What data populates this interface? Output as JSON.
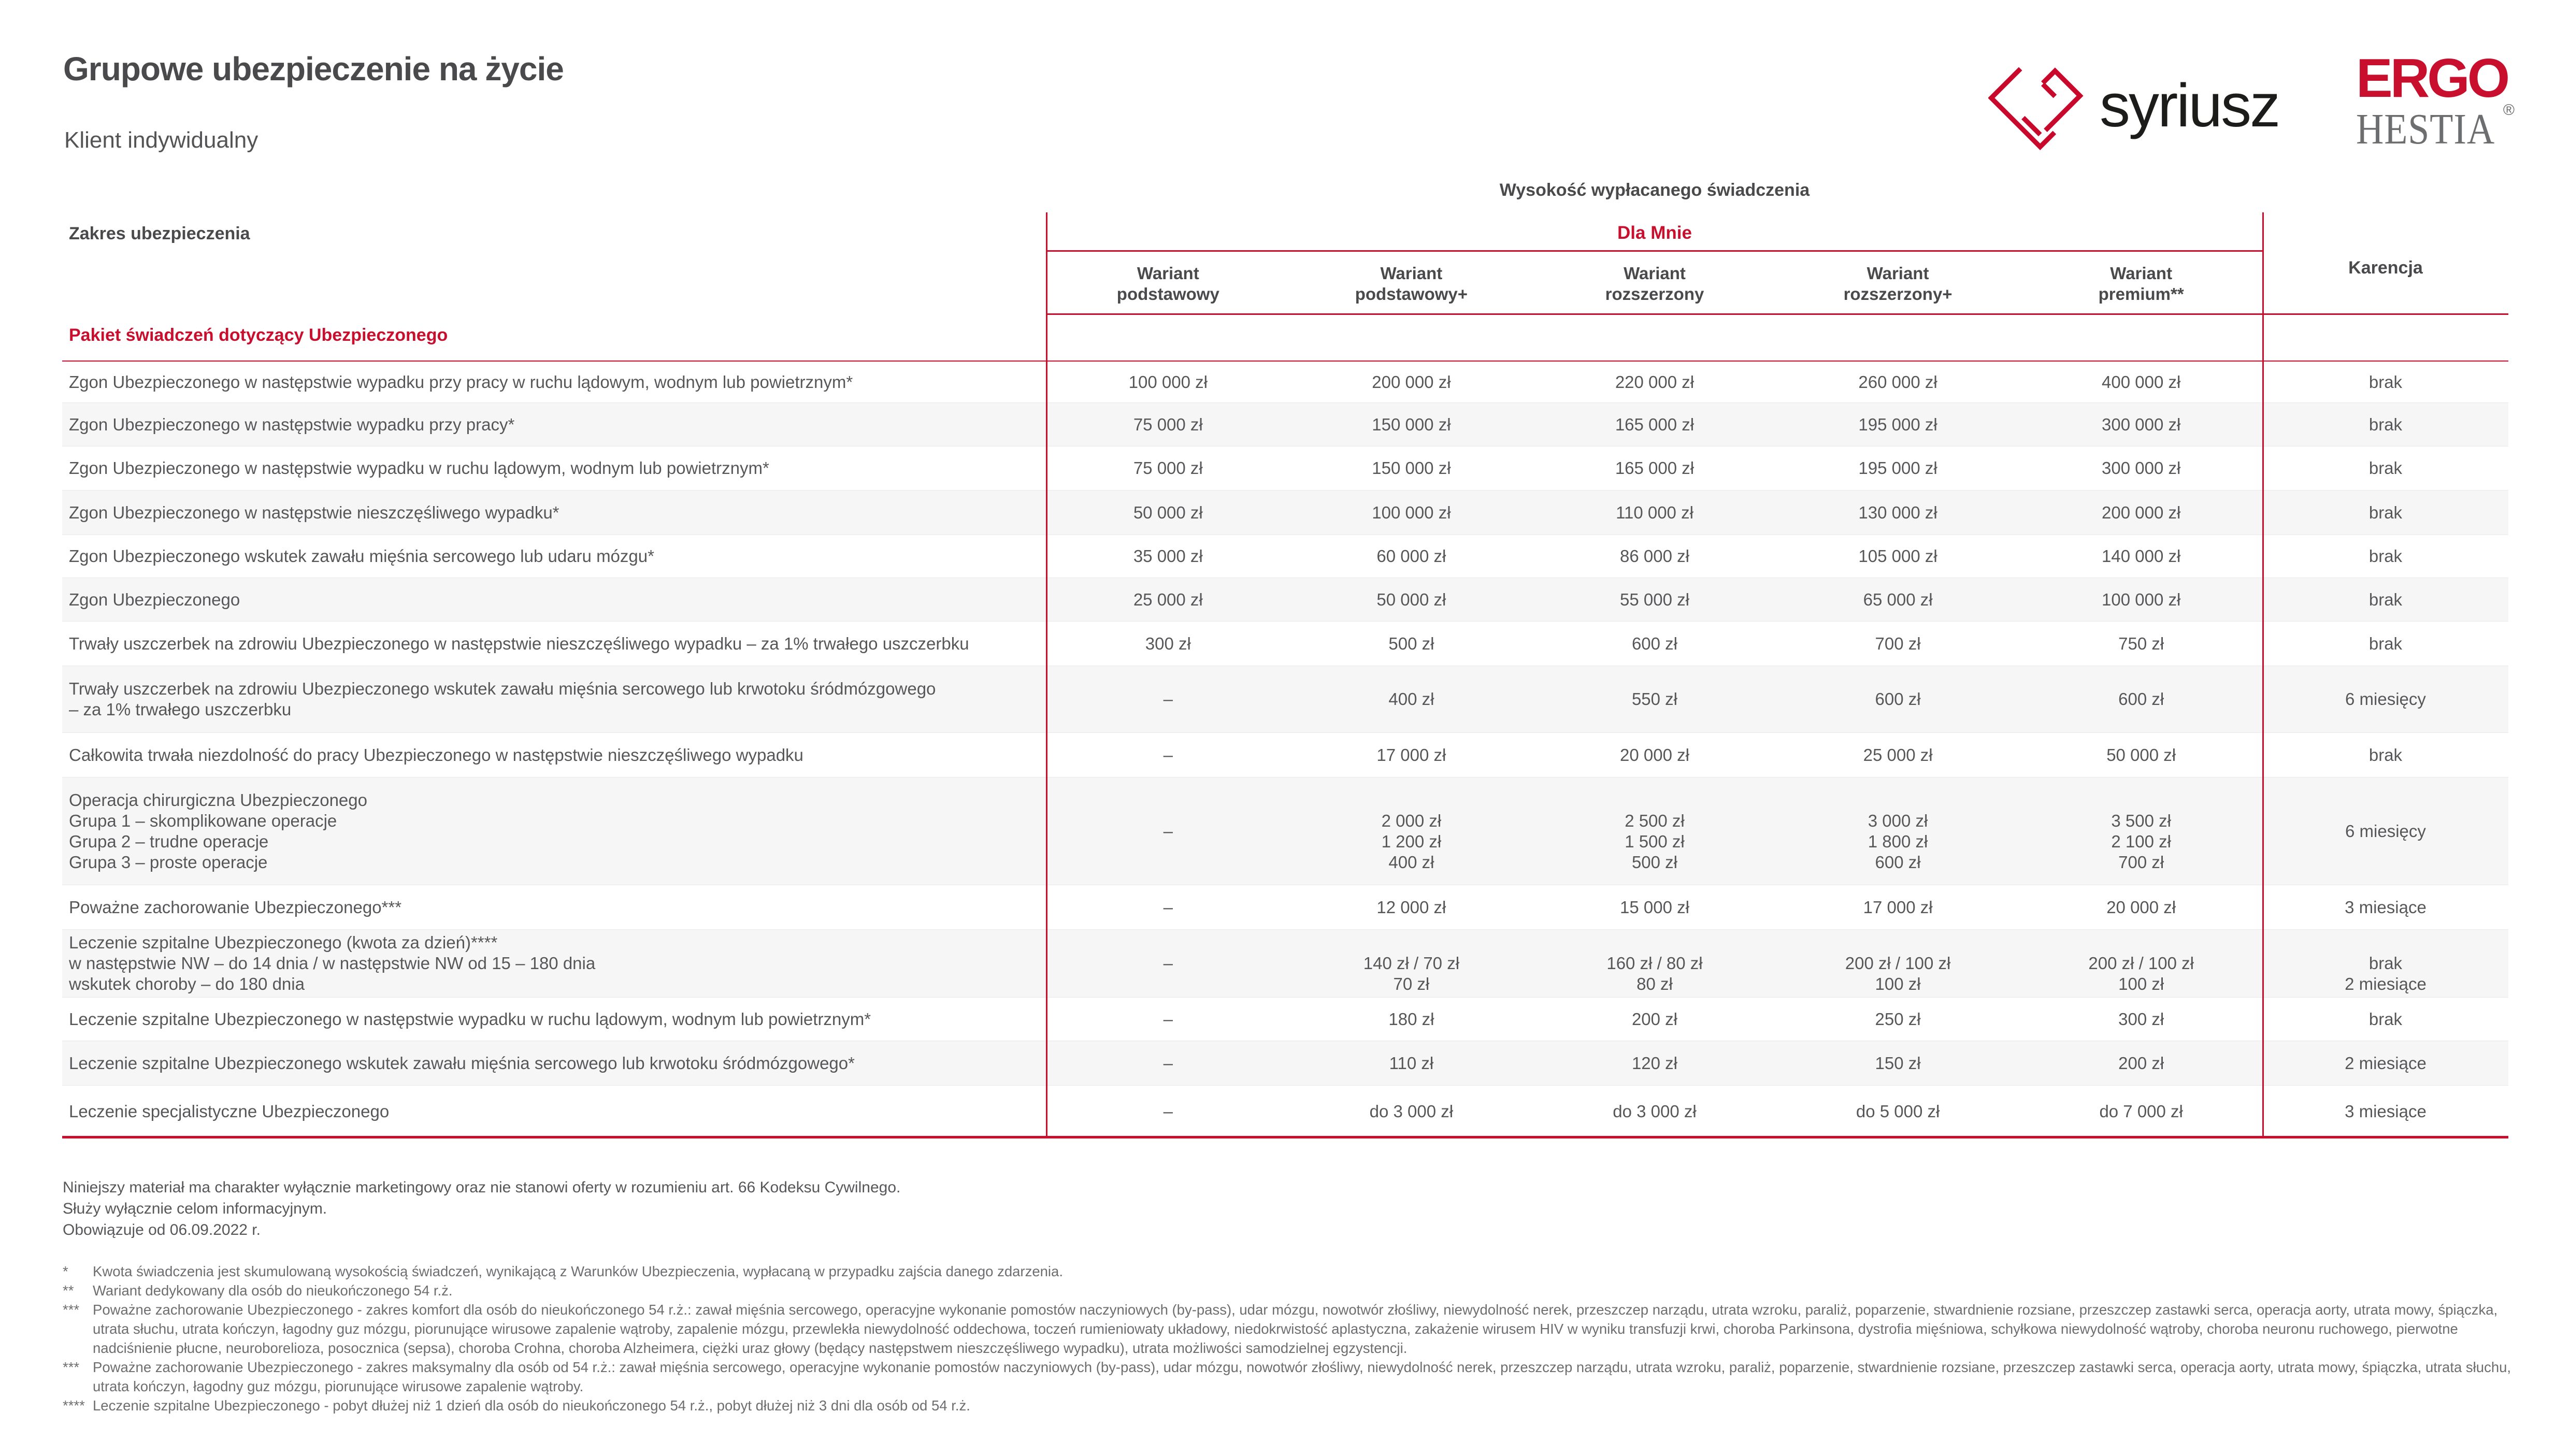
{
  "page": {
    "title": "Grupowe ubezpieczenie na życie",
    "subtitle": "Klient indywidualny"
  },
  "logos": {
    "syriusz_text": "syriusz",
    "ergo_top": "ERGO",
    "ergo_bottom": "HESTIA",
    "ergo_reg": "®"
  },
  "table": {
    "benefit_header": "Wysokość wypłacanego świadczenia",
    "scope_header": "Zakres ubezpieczenia",
    "group_header": "Dla Mnie",
    "karencja_header": "Karencja",
    "variant_headers": [
      [
        "Wariant",
        "podstawowy"
      ],
      [
        "Wariant",
        "podstawowy+"
      ],
      [
        "Wariant",
        "rozszerzony"
      ],
      [
        "Wariant",
        "rozszerzony+"
      ],
      [
        "Wariant",
        "premium**"
      ]
    ],
    "section_header": "Pakiet świadczeń dotyczący Ubezpieczonego",
    "rows": [
      {
        "label": [
          "Zgon Ubezpieczonego w następstwie wypadku przy pracy w ruchu lądowym, wodnym lub powietrznym*"
        ],
        "values": [
          [
            "100 000 zł"
          ],
          [
            "200 000 zł"
          ],
          [
            "220 000 zł"
          ],
          [
            "260 000 zł"
          ],
          [
            "400 000 zł"
          ]
        ],
        "karencja": [
          "brak"
        ]
      },
      {
        "label": [
          "Zgon Ubezpieczonego w następstwie wypadku przy pracy*"
        ],
        "values": [
          [
            "75 000 zł"
          ],
          [
            "150 000 zł"
          ],
          [
            "165 000 zł"
          ],
          [
            "195 000 zł"
          ],
          [
            "300 000 zł"
          ]
        ],
        "karencja": [
          "brak"
        ]
      },
      {
        "label": [
          "Zgon Ubezpieczonego w następstwie wypadku w ruchu lądowym, wodnym lub powietrznym*"
        ],
        "values": [
          [
            "75 000 zł"
          ],
          [
            "150 000 zł"
          ],
          [
            "165 000 zł"
          ],
          [
            "195 000 zł"
          ],
          [
            "300 000 zł"
          ]
        ],
        "karencja": [
          "brak"
        ]
      },
      {
        "label": [
          "Zgon Ubezpieczonego w następstwie nieszczęśliwego wypadku*"
        ],
        "values": [
          [
            "50 000 zł"
          ],
          [
            "100 000 zł"
          ],
          [
            "110 000 zł"
          ],
          [
            "130 000 zł"
          ],
          [
            "200 000 zł"
          ]
        ],
        "karencja": [
          "brak"
        ]
      },
      {
        "label": [
          "Zgon Ubezpieczonego wskutek zawału mięśnia sercowego lub udaru mózgu*"
        ],
        "values": [
          [
            "35 000 zł"
          ],
          [
            "60 000 zł"
          ],
          [
            "86 000 zł"
          ],
          [
            "105 000 zł"
          ],
          [
            "140 000 zł"
          ]
        ],
        "karencja": [
          "brak"
        ]
      },
      {
        "label": [
          "Zgon Ubezpieczonego"
        ],
        "values": [
          [
            "25 000 zł"
          ],
          [
            "50 000 zł"
          ],
          [
            "55 000 zł"
          ],
          [
            "65 000 zł"
          ],
          [
            "100 000 zł"
          ]
        ],
        "karencja": [
          "brak"
        ]
      },
      {
        "label": [
          "Trwały uszczerbek na zdrowiu Ubezpieczonego w następstwie nieszczęśliwego wypadku – za 1% trwałego uszczerbku"
        ],
        "values": [
          [
            "300 zł"
          ],
          [
            "500 zł"
          ],
          [
            "600 zł"
          ],
          [
            "700 zł"
          ],
          [
            "750 zł"
          ]
        ],
        "karencja": [
          "brak"
        ]
      },
      {
        "label": [
          "Trwały uszczerbek na zdrowiu Ubezpieczonego wskutek zawału mięśnia sercowego lub krwotoku śródmózgowego",
          "– za 1% trwałego uszczerbku"
        ],
        "values": [
          [
            "–"
          ],
          [
            "400 zł"
          ],
          [
            "550 zł"
          ],
          [
            "600 zł"
          ],
          [
            "600 zł"
          ]
        ],
        "karencja": [
          "6 miesięcy"
        ]
      },
      {
        "label": [
          "Całkowita trwała niezdolność do pracy Ubezpieczonego w następstwie nieszczęśliwego wypadku"
        ],
        "values": [
          [
            "–"
          ],
          [
            "17 000 zł"
          ],
          [
            "20 000 zł"
          ],
          [
            "25 000 zł"
          ],
          [
            "50 000 zł"
          ]
        ],
        "karencja": [
          "brak"
        ]
      },
      {
        "label": [
          "Operacja chirurgiczna Ubezpieczonego",
          "Grupa 1 – skomplikowane operacje",
          "Grupa 2 – trudne operacje",
          "Grupa 3 – proste operacje"
        ],
        "values": [
          [
            "–"
          ],
          [
            "2 000 zł",
            "1 200 zł",
            "400 zł"
          ],
          [
            "2 500 zł",
            "1 500 zł",
            "500 zł"
          ],
          [
            "3 000 zł",
            "1 800 zł",
            "600 zł"
          ],
          [
            "3 500 zł",
            "2 100 zł",
            "700 zł"
          ]
        ],
        "karencja": [
          "6 miesięcy"
        ],
        "value_pad_lines": 1
      },
      {
        "label": [
          "Poważne zachorowanie Ubezpieczonego***"
        ],
        "values": [
          [
            "–"
          ],
          [
            "12 000 zł"
          ],
          [
            "15 000 zł"
          ],
          [
            "17 000 zł"
          ],
          [
            "20 000 zł"
          ]
        ],
        "karencja": [
          "3 miesiące"
        ]
      },
      {
        "label": [
          "Leczenie szpitalne Ubezpieczonego (kwota za dzień)****",
          "w następstwie NW – do 14 dnia / w następstwie NW od 15 – 180 dnia",
          "wskutek choroby – do 180 dnia"
        ],
        "values": [
          [
            "–"
          ],
          [
            "140 zł / 70 zł",
            "70 zł"
          ],
          [
            "160 zł / 80 zł",
            "80 zł"
          ],
          [
            "200 zł / 100 zł",
            "100 zł"
          ],
          [
            "200 zł / 100 zł",
            "100 zł"
          ]
        ],
        "karencja": [
          "brak",
          "2 miesiące"
        ],
        "value_pad_lines": 1
      },
      {
        "label": [
          "Leczenie szpitalne Ubezpieczonego w następstwie wypadku w ruchu lądowym, wodnym lub powietrznym*"
        ],
        "values": [
          [
            "–"
          ],
          [
            "180 zł"
          ],
          [
            "200 zł"
          ],
          [
            "250 zł"
          ],
          [
            "300 zł"
          ]
        ],
        "karencja": [
          "brak"
        ]
      },
      {
        "label": [
          "Leczenie szpitalne Ubezpieczonego wskutek zawału mięśnia sercowego lub krwotoku śródmózgowego*"
        ],
        "values": [
          [
            "–"
          ],
          [
            "110 zł"
          ],
          [
            "120 zł"
          ],
          [
            "150 zł"
          ],
          [
            "200 zł"
          ]
        ],
        "karencja": [
          "2 miesiące"
        ]
      },
      {
        "label": [
          "Leczenie specjalistyczne Ubezpieczonego"
        ],
        "values": [
          [
            "–"
          ],
          [
            "do 3 000 zł"
          ],
          [
            "do 3 000 zł"
          ],
          [
            "do 5 000 zł"
          ],
          [
            "do 7 000 zł"
          ]
        ],
        "karencja": [
          "3 miesiące"
        ]
      }
    ]
  },
  "footer": {
    "lines": [
      "Niniejszy materiał ma charakter wyłącznie marketingowy oraz nie stanowi oferty w rozumieniu art. 66 Kodeksu Cywilnego.",
      "Służy wyłącznie celom informacyjnym.",
      "Obowiązuje od 06.09.2022 r."
    ]
  },
  "footnotes": [
    {
      "sym": "*",
      "text": "Kwota świadczenia jest skumulowaną wysokością świadczeń, wynikającą z Warunków Ubezpieczenia, wypłacaną w przypadku zajścia danego zdarzenia."
    },
    {
      "sym": "**",
      "text": "Wariant dedykowany dla osób do nieukończonego 54 r.ż."
    },
    {
      "sym": "***",
      "text": "Poważne zachorowanie Ubezpieczonego - zakres komfort dla osób do nieukończonego 54 r.ż.: zawał mięśnia sercowego, operacyjne wykonanie pomostów naczyniowych (by-pass), udar mózgu, nowotwór złośliwy, niewydolność nerek, przeszczep narządu, utrata wzroku, paraliż, poparzenie, stwardnienie rozsiane, przeszczep zastawki serca, operacja aorty, utrata mowy, śpiączka, utrata słuchu, utrata kończyn, łagodny guz mózgu, piorunujące wirusowe zapalenie wątroby, zapalenie mózgu, przewlekła niewydolność oddechowa, toczeń rumieniowaty układowy, niedokrwistość aplastyczna, zakażenie wirusem HIV w wyniku transfuzji krwi, choroba Parkinsona, dystrofia mięśniowa, schyłkowa niewydolność wątroby, choroba neuronu ruchowego, pierwotne nadciśnienie płucne, neuroborelioza, posocznica (sepsa), choroba Crohna, choroba Alzheimera, ciężki uraz głowy (będący następstwem nieszczęśliwego wypadku), utrata możliwości samodzielnej egzystencji."
    },
    {
      "sym": "***",
      "text": "Poważne zachorowanie Ubezpieczonego - zakres maksymalny dla osób od 54 r.ż.: zawał mięśnia sercowego, operacyjne wykonanie pomostów naczyniowych (by-pass), udar mózgu, nowotwór złośliwy, niewydolność nerek, przeszczep narządu, utrata wzroku, paraliż, poparzenie, stwardnienie rozsiane, przeszczep zastawki serca, operacja aorty, utrata mowy, śpiączka, utrata słuchu, utrata kończyn, łagodny guz mózgu, piorunujące wirusowe zapalenie wątroby."
    },
    {
      "sym": "****",
      "text": "Leczenie szpitalne Ubezpieczonego - pobyt dłużej niż 1 dzień dla osób do nieukończonego 54 r.ż., pobyt dłużej niż 3 dni dla osób od 54 r.ż."
    }
  ]
}
